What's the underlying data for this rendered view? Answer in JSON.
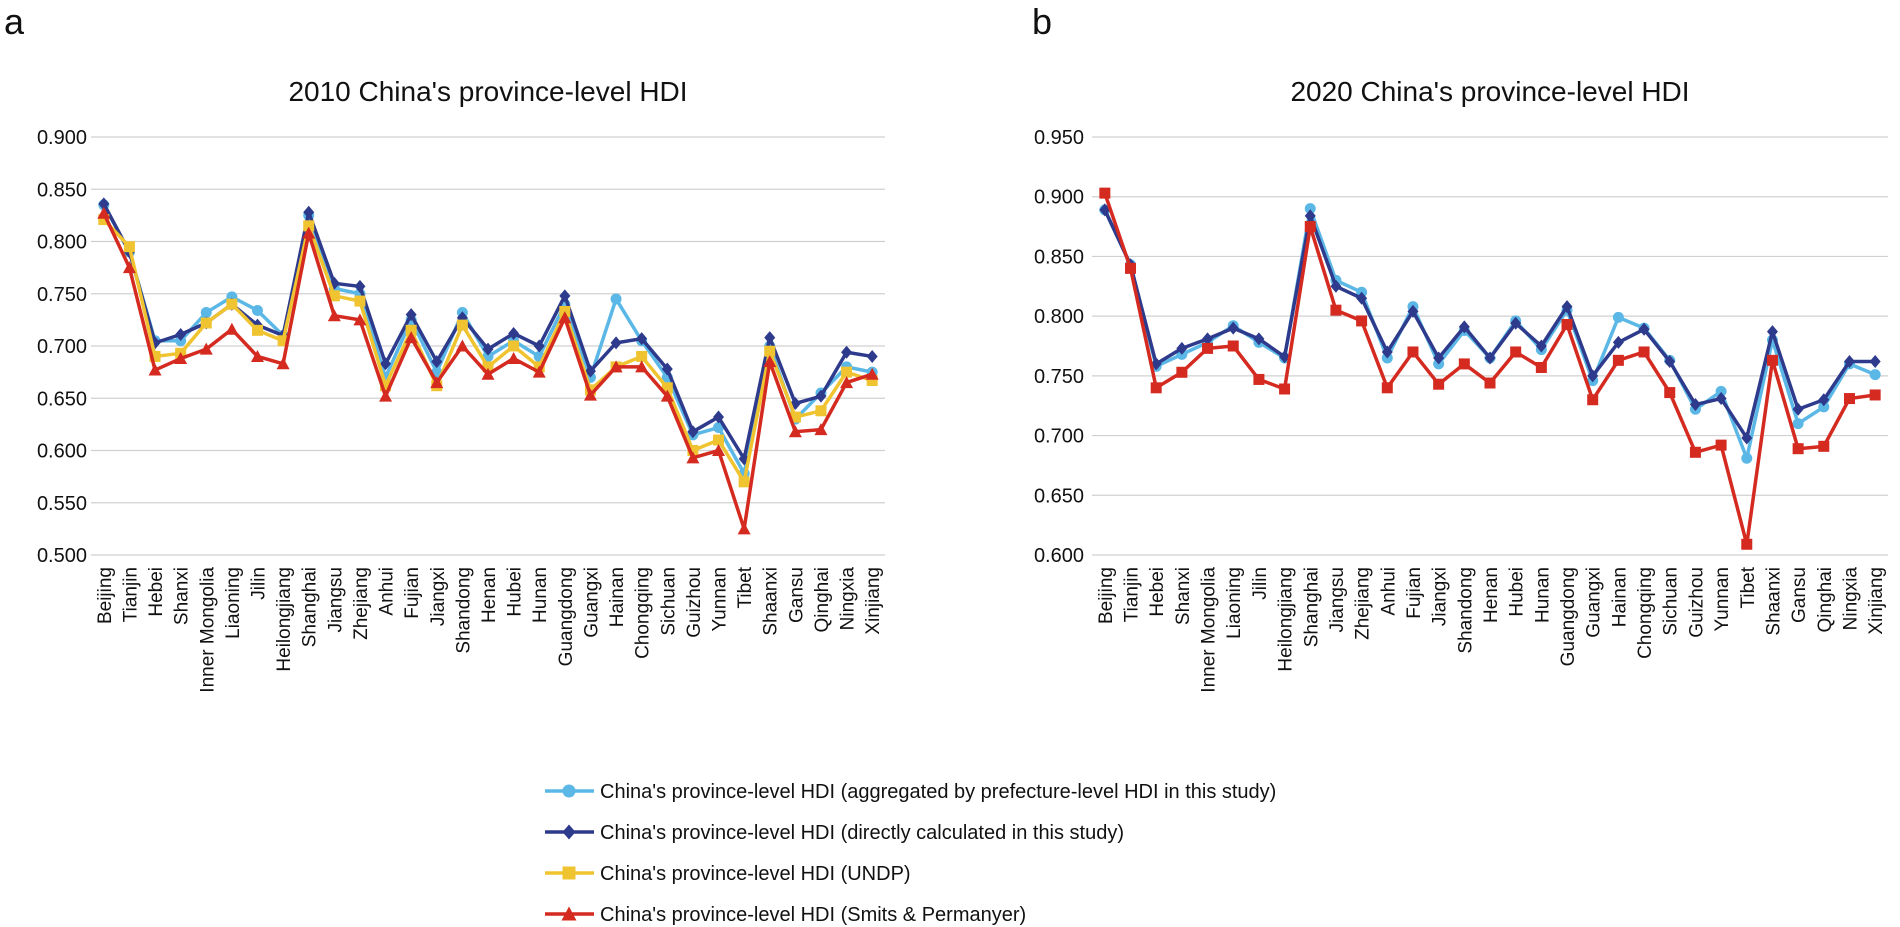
{
  "chart_data": [
    {
      "type": "line",
      "panel_label": "a",
      "title": "2010 China's province-level HDI",
      "categories": [
        "Beijing",
        "Tianjin",
        "Hebei",
        "Shanxi",
        "Inner Mongolia",
        "Liaoning",
        "Jilin",
        "Heilongjiang",
        "Shanghai",
        "Jiangsu",
        "Zhejiang",
        "Anhui",
        "Fujian",
        "Jiangxi",
        "Shandong",
        "Henan",
        "Hubei",
        "Hunan",
        "Guangdong",
        "Guangxi",
        "Hainan",
        "Chongqing",
        "Sichuan",
        "Guizhou",
        "Yunnan",
        "Tibet",
        "Shaanxi",
        "Gansu",
        "Qinghai",
        "Ningxia",
        "Xinjiang"
      ],
      "ylim": [
        0.5,
        0.9
      ],
      "yticks": [
        {
          "value": 0.5,
          "label": "0.500"
        },
        {
          "value": 0.55,
          "label": "0.550"
        },
        {
          "value": 0.6,
          "label": "0.600"
        },
        {
          "value": 0.65,
          "label": "0.650"
        },
        {
          "value": 0.7,
          "label": "0.700"
        },
        {
          "value": 0.75,
          "label": "0.750"
        },
        {
          "value": 0.8,
          "label": "0.800"
        },
        {
          "value": 0.85,
          "label": "0.850"
        },
        {
          "value": 0.9,
          "label": "0.900"
        }
      ],
      "grid": true,
      "series": [
        {
          "name": "China's province-level HDI (aggregated by prefecture-level HDI in this study)",
          "color": "#5bb8e6",
          "marker": "circle",
          "values": [
            0.835,
            0.79,
            0.705,
            0.705,
            0.732,
            0.747,
            0.734,
            0.71,
            0.825,
            0.755,
            0.75,
            0.67,
            0.725,
            0.675,
            0.732,
            0.69,
            0.705,
            0.69,
            0.74,
            0.67,
            0.745,
            0.705,
            0.67,
            0.615,
            0.622,
            0.578,
            0.7,
            0.63,
            0.655,
            0.68,
            0.675
          ]
        },
        {
          "name": "China's province-level HDI (directly calculated in this study)",
          "color": "#2e3a8c",
          "marker": "diamond",
          "values": [
            0.836,
            0.79,
            0.703,
            0.711,
            0.722,
            0.74,
            0.72,
            0.71,
            0.828,
            0.76,
            0.757,
            0.683,
            0.73,
            0.685,
            0.727,
            0.697,
            0.712,
            0.7,
            0.748,
            0.676,
            0.703,
            0.707,
            0.678,
            0.618,
            0.632,
            0.592,
            0.708,
            0.645,
            0.652,
            0.694,
            0.69
          ]
        },
        {
          "name": "China's province-level HDI (UNDP)",
          "color": "#f0c430",
          "marker": "square",
          "values": [
            0.821,
            0.795,
            0.69,
            0.693,
            0.722,
            0.74,
            0.715,
            0.705,
            0.815,
            0.748,
            0.743,
            0.662,
            0.715,
            0.662,
            0.72,
            0.68,
            0.7,
            0.68,
            0.733,
            0.658,
            0.68,
            0.69,
            0.66,
            0.6,
            0.61,
            0.57,
            0.695,
            0.632,
            0.638,
            0.675,
            0.667
          ]
        },
        {
          "name": "China's province-level HDI (Smits & Permanyer)",
          "color": "#d42a20",
          "marker": "triangle",
          "values": [
            0.827,
            0.775,
            0.677,
            0.688,
            0.697,
            0.716,
            0.69,
            0.683,
            0.808,
            0.729,
            0.725,
            0.652,
            0.708,
            0.665,
            0.7,
            0.673,
            0.688,
            0.675,
            0.727,
            0.653,
            0.68,
            0.68,
            0.652,
            0.593,
            0.6,
            0.525,
            0.685,
            0.618,
            0.62,
            0.665,
            0.673
          ]
        }
      ]
    },
    {
      "type": "line",
      "panel_label": "b",
      "title": "2020 China's province-level HDI",
      "categories": [
        "Beijing",
        "Tianjin",
        "Hebei",
        "Shanxi",
        "Inner Mongolia",
        "Liaoning",
        "Jilin",
        "Heilongjiang",
        "Shanghai",
        "Jiangsu",
        "Zhejiang",
        "Anhui",
        "Fujian",
        "Jiangxi",
        "Shandong",
        "Henan",
        "Hubei",
        "Hunan",
        "Guangdong",
        "Guangxi",
        "Hainan",
        "Chongqing",
        "Sichuan",
        "Guizhou",
        "Yunnan",
        "Tibet",
        "Shaanxi",
        "Gansu",
        "Qinghai",
        "Ningxia",
        "Xinjiang"
      ],
      "ylim": [
        0.6,
        0.95
      ],
      "yticks": [
        {
          "value": 0.6,
          "label": "0.600"
        },
        {
          "value": 0.65,
          "label": "0.650"
        },
        {
          "value": 0.7,
          "label": "0.700"
        },
        {
          "value": 0.75,
          "label": "0.750"
        },
        {
          "value": 0.8,
          "label": "0.800"
        },
        {
          "value": 0.85,
          "label": "0.850"
        },
        {
          "value": 0.9,
          "label": "0.900"
        },
        {
          "value": 0.95,
          "label": "0.950"
        }
      ],
      "grid": true,
      "series": [
        {
          "name": "China's province-level HDI (aggregated by prefecture-level HDI in this study)",
          "color": "#5bb8e6",
          "marker": "circle",
          "values": [
            0.889,
            0.843,
            0.758,
            0.768,
            0.778,
            0.792,
            0.778,
            0.765,
            0.89,
            0.83,
            0.82,
            0.765,
            0.808,
            0.76,
            0.788,
            0.765,
            0.796,
            0.772,
            0.805,
            0.746,
            0.799,
            0.79,
            0.763,
            0.722,
            0.737,
            0.681,
            0.78,
            0.71,
            0.724,
            0.76,
            0.751
          ]
        },
        {
          "name": "China's province-level HDI (directly calculated in this study)",
          "color": "#2e3a8c",
          "marker": "diamond",
          "values": [
            0.889,
            0.843,
            0.76,
            0.773,
            0.781,
            0.79,
            0.781,
            0.766,
            0.884,
            0.825,
            0.815,
            0.77,
            0.804,
            0.765,
            0.791,
            0.765,
            0.794,
            0.775,
            0.808,
            0.75,
            0.778,
            0.789,
            0.762,
            0.726,
            0.731,
            0.698,
            0.787,
            0.722,
            0.73,
            0.762,
            0.762
          ]
        },
        {
          "name": "China's province-level HDI (Smits & Permanyer)",
          "color": "#d42a20",
          "marker": "square",
          "values": [
            0.903,
            0.84,
            0.74,
            0.753,
            0.773,
            0.775,
            0.747,
            0.739,
            0.875,
            0.805,
            0.796,
            0.74,
            0.77,
            0.743,
            0.76,
            0.744,
            0.77,
            0.757,
            0.793,
            0.73,
            0.763,
            0.77,
            0.736,
            0.686,
            0.692,
            0.609,
            0.763,
            0.689,
            0.691,
            0.731,
            0.734
          ]
        }
      ]
    }
  ]
}
